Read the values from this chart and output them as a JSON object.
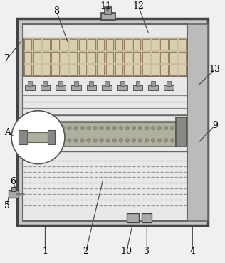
{
  "bg_color": "#f0f0f0",
  "colors": {
    "outer_border": "#444444",
    "inner_border": "#666666",
    "outer_fill": "#c8c8c8",
    "inner_fill": "#e8e8e8",
    "right_channel": "#bbbbbb",
    "top_filter_fill": "#c8c0a0",
    "top_filter_dot_fill": "#d8d0b0",
    "top_filter_dot_edge": "#908060",
    "nozzle_fill": "#aaaaaa",
    "mid_filter_fill": "#b0b0a0",
    "mid_filter_dot": "#909088",
    "mid_cap_fill": "#888888",
    "bottom_dash": "#999999",
    "valve_fill": "#aaaaaa",
    "conn_fill": "#aaaaaa",
    "line_col": "#555555",
    "label_line": "#444444"
  },
  "figsize": [
    3.16,
    3.7
  ],
  "dpi": 100
}
